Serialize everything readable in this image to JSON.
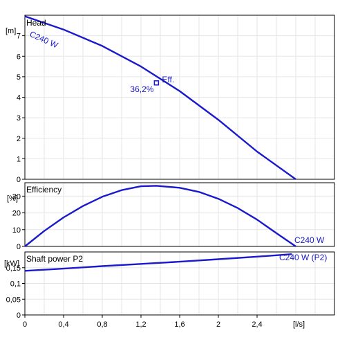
{
  "chart_data": [
    {
      "type": "line",
      "panel": "head",
      "title": "Head",
      "ylabel": "[m]",
      "xlabel": "",
      "xlim": [
        0,
        3.2
      ],
      "ylim": [
        0,
        8
      ],
      "yticks": [
        0,
        1,
        2,
        3,
        4,
        5,
        6,
        7
      ],
      "ytick_labels": [
        "0",
        "1",
        "2",
        "3",
        "4",
        "5",
        "6",
        "7"
      ],
      "grid": true,
      "series": [
        {
          "name": "C240 W",
          "color": "#1a1acc",
          "x": [
            0,
            0.4,
            0.8,
            1.2,
            1.6,
            2.0,
            2.4,
            2.8
          ],
          "y": [
            7.95,
            7.3,
            6.5,
            5.5,
            4.3,
            2.9,
            1.35,
            0
          ]
        }
      ],
      "marker": {
        "x": 1.36,
        "y": 4.7,
        "label": "Eff.",
        "value_label": "36,2%"
      }
    },
    {
      "type": "line",
      "panel": "efficiency",
      "title": "Efficiency",
      "ylabel": "[%]",
      "xlabel": "",
      "xlim": [
        0,
        3.2
      ],
      "ylim": [
        0,
        38
      ],
      "yticks": [
        0,
        10,
        20,
        30
      ],
      "ytick_labels": [
        "0",
        "10",
        "20",
        "30"
      ],
      "grid": true,
      "series": [
        {
          "name": "C240 W",
          "color": "#1a1acc",
          "x": [
            0,
            0.2,
            0.4,
            0.6,
            0.8,
            1.0,
            1.2,
            1.36,
            1.6,
            1.8,
            2.0,
            2.2,
            2.4,
            2.6,
            2.8
          ],
          "y": [
            0,
            9.2,
            17.3,
            24.1,
            29.6,
            33.6,
            35.9,
            36.2,
            35.0,
            32.5,
            28.4,
            22.9,
            16.0,
            7.9,
            0
          ]
        }
      ]
    },
    {
      "type": "line",
      "panel": "power",
      "title": "Shaft power P2",
      "ylabel": "[kW]",
      "xlabel": "[l/s]",
      "xlim": [
        0,
        3.2
      ],
      "ylim": [
        0,
        0.2
      ],
      "yticks": [
        0,
        0.05,
        0.1,
        0.15
      ],
      "ytick_labels": [
        "0",
        "0,05",
        "0,1",
        "0,15"
      ],
      "xticks": [
        0,
        0.4,
        0.8,
        1.2,
        1.6,
        2.0,
        2.4
      ],
      "xtick_labels": [
        "0",
        "0,4",
        "0,8",
        "1,2",
        "1,6",
        "2",
        "2,4"
      ],
      "grid": true,
      "series": [
        {
          "name": "C240 W (P2)",
          "color": "#1a1acc",
          "x": [
            0,
            0.4,
            0.8,
            1.2,
            1.6,
            2.0,
            2.4,
            2.76
          ],
          "y": [
            0.14,
            0.147,
            0.155,
            0.162,
            0.169,
            0.177,
            0.185,
            0.193
          ]
        }
      ]
    }
  ]
}
